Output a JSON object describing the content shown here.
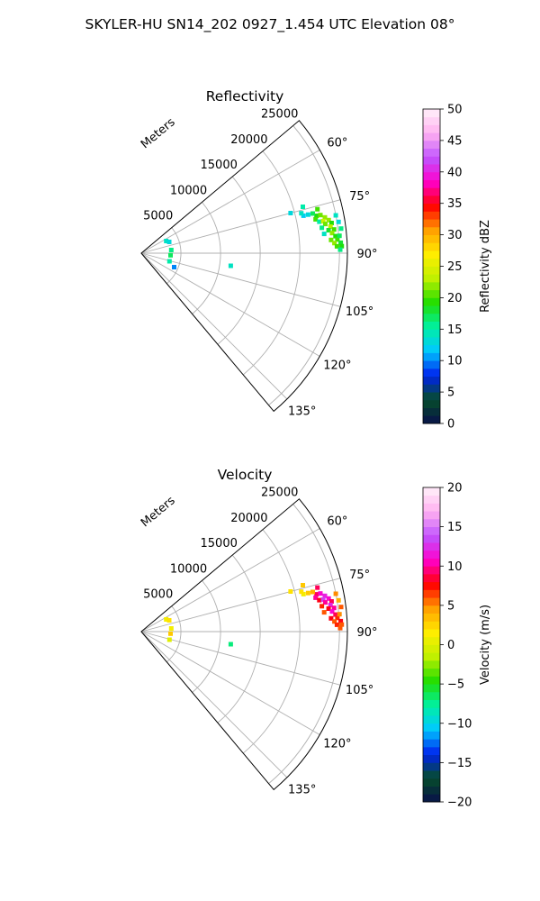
{
  "figure": {
    "title": "SKYLER-HU  SN14_202  0927_1.454 UTC Elevation 08°"
  },
  "colors": {
    "grid": "#b0b0b0",
    "frame": "#000000"
  },
  "chart_data": [
    {
      "type": "polar-sector-scan",
      "title": "Reflectivity",
      "radial_axis_label": "Meters",
      "radial_ticks": [
        "5000",
        "10000",
        "15000",
        "20000",
        "25000"
      ],
      "radial_tick_values": [
        5000,
        10000,
        15000,
        20000,
        25000
      ],
      "r_max": 26000,
      "theta_range_deg": [
        50,
        140
      ],
      "theta_ticks": [
        "60°",
        "75°",
        "90°",
        "105°",
        "120°",
        "135°"
      ],
      "theta_tick_values": [
        60,
        75,
        90,
        105,
        120,
        135
      ],
      "grid": true,
      "colorbar": {
        "label": "Reflectivity dBZ",
        "range": [
          0,
          50
        ],
        "ticks": [
          "0",
          "5",
          "10",
          "15",
          "20",
          "25",
          "30",
          "35",
          "40",
          "45",
          "50"
        ],
        "tick_values": [
          0,
          5,
          10,
          15,
          20,
          25,
          30,
          35,
          40,
          45,
          50
        ],
        "stops": [
          "#08104a",
          "#064d2a",
          "#0022ee",
          "#00c8ff",
          "#00f0a0",
          "#22dd00",
          "#bff000",
          "#ffee00",
          "#ff9f00",
          "#ff0000",
          "#ff00cc",
          "#bf55ff",
          "#ffb0f0",
          "#fff0fa"
        ]
      },
      "echoes": [
        {
          "theta": 78,
          "r": 22600,
          "value": 19
        },
        {
          "theta": 78,
          "r": 23100,
          "value": 21
        },
        {
          "theta": 79,
          "r": 22400,
          "value": 20
        },
        {
          "theta": 79,
          "r": 23600,
          "value": 22
        },
        {
          "theta": 80,
          "r": 22800,
          "value": 15
        },
        {
          "theta": 80,
          "r": 24000,
          "value": 22
        },
        {
          "theta": 80,
          "r": 23300,
          "value": 24
        },
        {
          "theta": 81,
          "r": 23500,
          "value": 21
        },
        {
          "theta": 81,
          "r": 24300,
          "value": 19
        },
        {
          "theta": 82,
          "r": 23000,
          "value": 16
        },
        {
          "theta": 82,
          "r": 24100,
          "value": 23
        },
        {
          "theta": 83,
          "r": 24500,
          "value": 20
        },
        {
          "theta": 83,
          "r": 23800,
          "value": 18
        },
        {
          "theta": 84,
          "r": 24200,
          "value": 22
        },
        {
          "theta": 84,
          "r": 23200,
          "value": 14
        },
        {
          "theta": 85,
          "r": 24600,
          "value": 19
        },
        {
          "theta": 86,
          "r": 24000,
          "value": 21
        },
        {
          "theta": 86,
          "r": 24800,
          "value": 20
        },
        {
          "theta": 87,
          "r": 24400,
          "value": 22
        },
        {
          "theta": 87,
          "r": 25200,
          "value": 18
        },
        {
          "theta": 88,
          "r": 24700,
          "value": 20
        },
        {
          "theta": 88,
          "r": 25300,
          "value": 19
        },
        {
          "theta": 77,
          "r": 21600,
          "value": 13
        },
        {
          "theta": 77,
          "r": 21000,
          "value": 12
        },
        {
          "theta": 77,
          "r": 22200,
          "value": 17
        },
        {
          "theta": 76,
          "r": 20800,
          "value": 14
        },
        {
          "theta": 79,
          "r": 25000,
          "value": 14
        },
        {
          "theta": 81,
          "r": 25200,
          "value": 13
        },
        {
          "theta": 83,
          "r": 25400,
          "value": 16
        },
        {
          "theta": 85,
          "r": 25100,
          "value": 17
        },
        {
          "theta": 89,
          "r": 25100,
          "value": 16
        },
        {
          "theta": 76,
          "r": 22900,
          "value": 20
        },
        {
          "theta": 75,
          "r": 19500,
          "value": 13
        },
        {
          "theta": 74,
          "r": 21200,
          "value": 15
        },
        {
          "theta": 64,
          "r": 3500,
          "value": 14
        },
        {
          "theta": 68,
          "r": 3800,
          "value": 13
        },
        {
          "theta": 84,
          "r": 3800,
          "value": 16
        },
        {
          "theta": 94,
          "r": 3700,
          "value": 17
        },
        {
          "theta": 106,
          "r": 3700,
          "value": 15
        },
        {
          "theta": 113,
          "r": 4500,
          "value": 10
        },
        {
          "theta": 98,
          "r": 11400,
          "value": 14
        }
      ]
    },
    {
      "type": "polar-sector-scan",
      "title": "Velocity",
      "radial_axis_label": "Meters",
      "radial_ticks": [
        "5000",
        "10000",
        "15000",
        "20000",
        "25000"
      ],
      "radial_tick_values": [
        5000,
        10000,
        15000,
        20000,
        25000
      ],
      "r_max": 26000,
      "theta_range_deg": [
        50,
        140
      ],
      "theta_ticks": [
        "60°",
        "75°",
        "90°",
        "105°",
        "120°",
        "135°"
      ],
      "theta_tick_values": [
        60,
        75,
        90,
        105,
        120,
        135
      ],
      "grid": true,
      "colorbar": {
        "label": "Velocity (m/s)",
        "range": [
          -20,
          20
        ],
        "ticks": [
          "−20",
          "−15",
          "−10",
          "−5",
          "0",
          "5",
          "10",
          "15",
          "20"
        ],
        "tick_values": [
          -20,
          -15,
          -10,
          -5,
          0,
          5,
          10,
          15,
          20
        ],
        "stops": [
          "#08104a",
          "#064d2a",
          "#0022ee",
          "#00c8ff",
          "#00f0a0",
          "#22dd00",
          "#bff000",
          "#ffee00",
          "#ff9f00",
          "#ff0000",
          "#ff00cc",
          "#bf55ff",
          "#ffb0f0",
          "#fff0fa"
        ]
      },
      "echoes": [
        {
          "theta": 78,
          "r": 22600,
          "value": 9
        },
        {
          "theta": 78,
          "r": 23100,
          "value": 11
        },
        {
          "theta": 79,
          "r": 22400,
          "value": 10
        },
        {
          "theta": 79,
          "r": 23600,
          "value": 12
        },
        {
          "theta": 80,
          "r": 22800,
          "value": 8
        },
        {
          "theta": 80,
          "r": 24000,
          "value": 11
        },
        {
          "theta": 80,
          "r": 23300,
          "value": 13
        },
        {
          "theta": 81,
          "r": 23500,
          "value": 10
        },
        {
          "theta": 81,
          "r": 24300,
          "value": 9
        },
        {
          "theta": 82,
          "r": 23000,
          "value": 7
        },
        {
          "theta": 82,
          "r": 24100,
          "value": 12
        },
        {
          "theta": 83,
          "r": 24500,
          "value": 10
        },
        {
          "theta": 83,
          "r": 23800,
          "value": 8
        },
        {
          "theta": 84,
          "r": 24200,
          "value": 11
        },
        {
          "theta": 84,
          "r": 23200,
          "value": 6
        },
        {
          "theta": 85,
          "r": 24600,
          "value": 9
        },
        {
          "theta": 86,
          "r": 24000,
          "value": 8
        },
        {
          "theta": 86,
          "r": 24800,
          "value": 7
        },
        {
          "theta": 87,
          "r": 24400,
          "value": 6
        },
        {
          "theta": 87,
          "r": 25200,
          "value": 8
        },
        {
          "theta": 88,
          "r": 24700,
          "value": 7
        },
        {
          "theta": 88,
          "r": 25300,
          "value": 6
        },
        {
          "theta": 77,
          "r": 21600,
          "value": 3
        },
        {
          "theta": 77,
          "r": 21000,
          "value": 1
        },
        {
          "theta": 77,
          "r": 22200,
          "value": 4
        },
        {
          "theta": 76,
          "r": 20800,
          "value": 2
        },
        {
          "theta": 79,
          "r": 25000,
          "value": 5
        },
        {
          "theta": 81,
          "r": 25200,
          "value": 4
        },
        {
          "theta": 83,
          "r": 25400,
          "value": 6
        },
        {
          "theta": 85,
          "r": 25100,
          "value": 5
        },
        {
          "theta": 89,
          "r": 25100,
          "value": 6
        },
        {
          "theta": 76,
          "r": 22900,
          "value": 9
        },
        {
          "theta": 75,
          "r": 19500,
          "value": 2
        },
        {
          "theta": 74,
          "r": 21200,
          "value": 3
        },
        {
          "theta": 64,
          "r": 3500,
          "value": 1
        },
        {
          "theta": 68,
          "r": 3800,
          "value": 2
        },
        {
          "theta": 84,
          "r": 3800,
          "value": 1
        },
        {
          "theta": 94,
          "r": 3700,
          "value": 3
        },
        {
          "theta": 106,
          "r": 3700,
          "value": 0
        },
        {
          "theta": 98,
          "r": 11400,
          "value": -7
        }
      ]
    }
  ]
}
